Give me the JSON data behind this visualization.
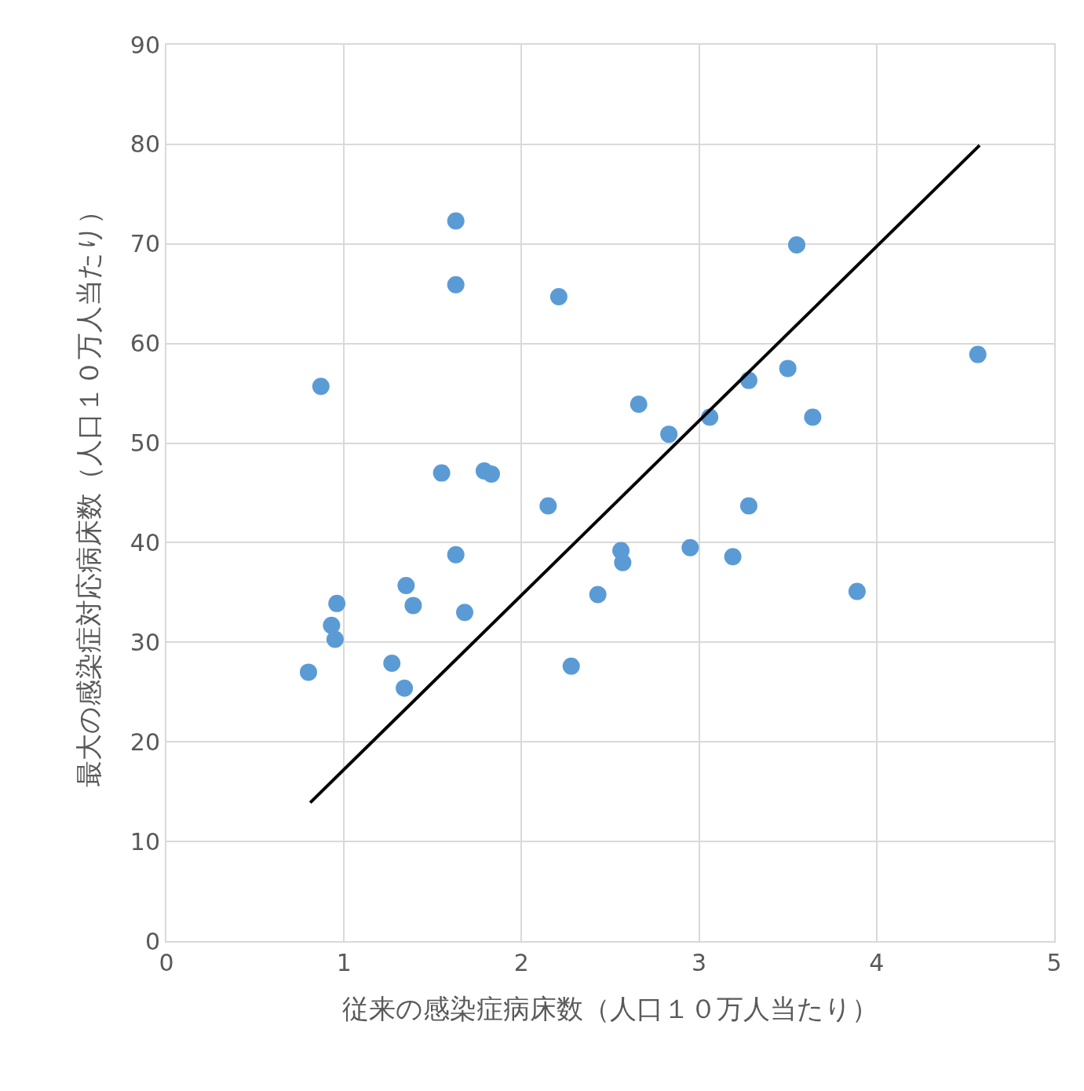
{
  "chart_data": {
    "type": "scatter",
    "xlabel": "従来の感染症病床数（人口１０万人当たり）",
    "ylabel": "最大の感染症対応病床数（人口１０万人当たり）",
    "xlim": [
      0,
      5
    ],
    "xticks": [
      0,
      1,
      2,
      3,
      4,
      5
    ],
    "ylim": [
      0,
      90
    ],
    "yticks": [
      0,
      10,
      20,
      30,
      40,
      50,
      60,
      70,
      80,
      90
    ],
    "grid": true,
    "marker": "circle",
    "series": [
      {
        "color": "#5b9bd5",
        "x": [
          0.8,
          0.87,
          0.93,
          0.96,
          0.95,
          1.27,
          1.34,
          1.35,
          1.39,
          1.55,
          1.63,
          1.63,
          1.63,
          1.68,
          1.79,
          1.83,
          2.15,
          2.21,
          2.28,
          2.43,
          2.56,
          2.57,
          2.66,
          2.83,
          2.95,
          3.06,
          3.19,
          3.28,
          3.28,
          3.5,
          3.55,
          3.64,
          3.89,
          4.57
        ],
        "values": [
          27.0,
          55.7,
          31.7,
          33.9,
          30.3,
          27.9,
          25.4,
          35.7,
          33.7,
          47.0,
          38.8,
          72.3,
          65.9,
          33.0,
          47.2,
          46.9,
          43.7,
          64.7,
          27.6,
          34.8,
          39.2,
          38.0,
          53.9,
          50.9,
          39.5,
          52.6,
          38.6,
          43.7,
          56.3,
          57.5,
          69.9,
          52.6,
          35.1,
          58.9
        ]
      },
      {
        "type": "line",
        "color": "#000000",
        "marker": "none",
        "line_style": "solid",
        "x": [
          0.81,
          4.58
        ],
        "values": [
          13.9,
          79.9
        ]
      }
    ]
  }
}
